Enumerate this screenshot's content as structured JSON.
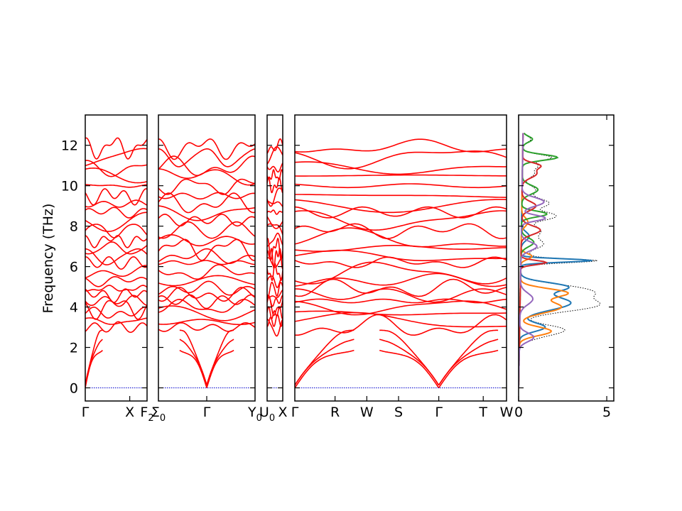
{
  "chart_data": {
    "type": "line",
    "title": "",
    "ylabel": "Frequency (THz)",
    "ylim": [
      -0.65,
      13.5
    ],
    "yticks": [
      0,
      2,
      4,
      6,
      8,
      10,
      12
    ],
    "band_color": "#ff0000",
    "zero_line_color": "#0000cc",
    "grid": false,
    "legend": "none",
    "panels": [
      {
        "name": "band-panel-gamma-x-f2",
        "ticks": [
          {
            "label": "Γ",
            "sub": "",
            "pos": 0
          },
          {
            "label": "X",
            "sub": "",
            "pos": 0.72
          },
          {
            "label": "F",
            "sub": "2",
            "pos": 1.0
          }
        ]
      },
      {
        "name": "band-panel-sigma0-gamma-y0",
        "ticks": [
          {
            "label": "Σ",
            "sub": "0",
            "pos": 0
          },
          {
            "label": "Γ",
            "sub": "",
            "pos": 0.5
          },
          {
            "label": "Y",
            "sub": "0",
            "pos": 1.0
          }
        ]
      },
      {
        "name": "band-panel-u0-x",
        "ticks": [
          {
            "label": "U",
            "sub": "0",
            "pos": 0
          },
          {
            "label": "X",
            "sub": "",
            "pos": 1.0
          }
        ]
      },
      {
        "name": "band-panel-gamma-r-w-s-gamma-t-w",
        "ticks": [
          {
            "label": "Γ",
            "sub": "",
            "pos": 0
          },
          {
            "label": "R",
            "sub": "",
            "pos": 0.19
          },
          {
            "label": "W",
            "sub": "",
            "pos": 0.34
          },
          {
            "label": "S",
            "sub": "",
            "pos": 0.49
          },
          {
            "label": "Γ",
            "sub": "",
            "pos": 0.68
          },
          {
            "label": "T",
            "sub": "",
            "pos": 0.89
          },
          {
            "label": "W",
            "sub": "",
            "pos": 1.0
          }
        ]
      }
    ],
    "dos_panel": {
      "xlim": [
        0,
        5.4
      ],
      "xticks": [
        0,
        5
      ],
      "total_dos_style": "black dotted",
      "series_colors": [
        "#1f77b4",
        "#ff7f0e",
        "#2ca02c",
        "#d62728",
        "#9467bd"
      ]
    }
  }
}
